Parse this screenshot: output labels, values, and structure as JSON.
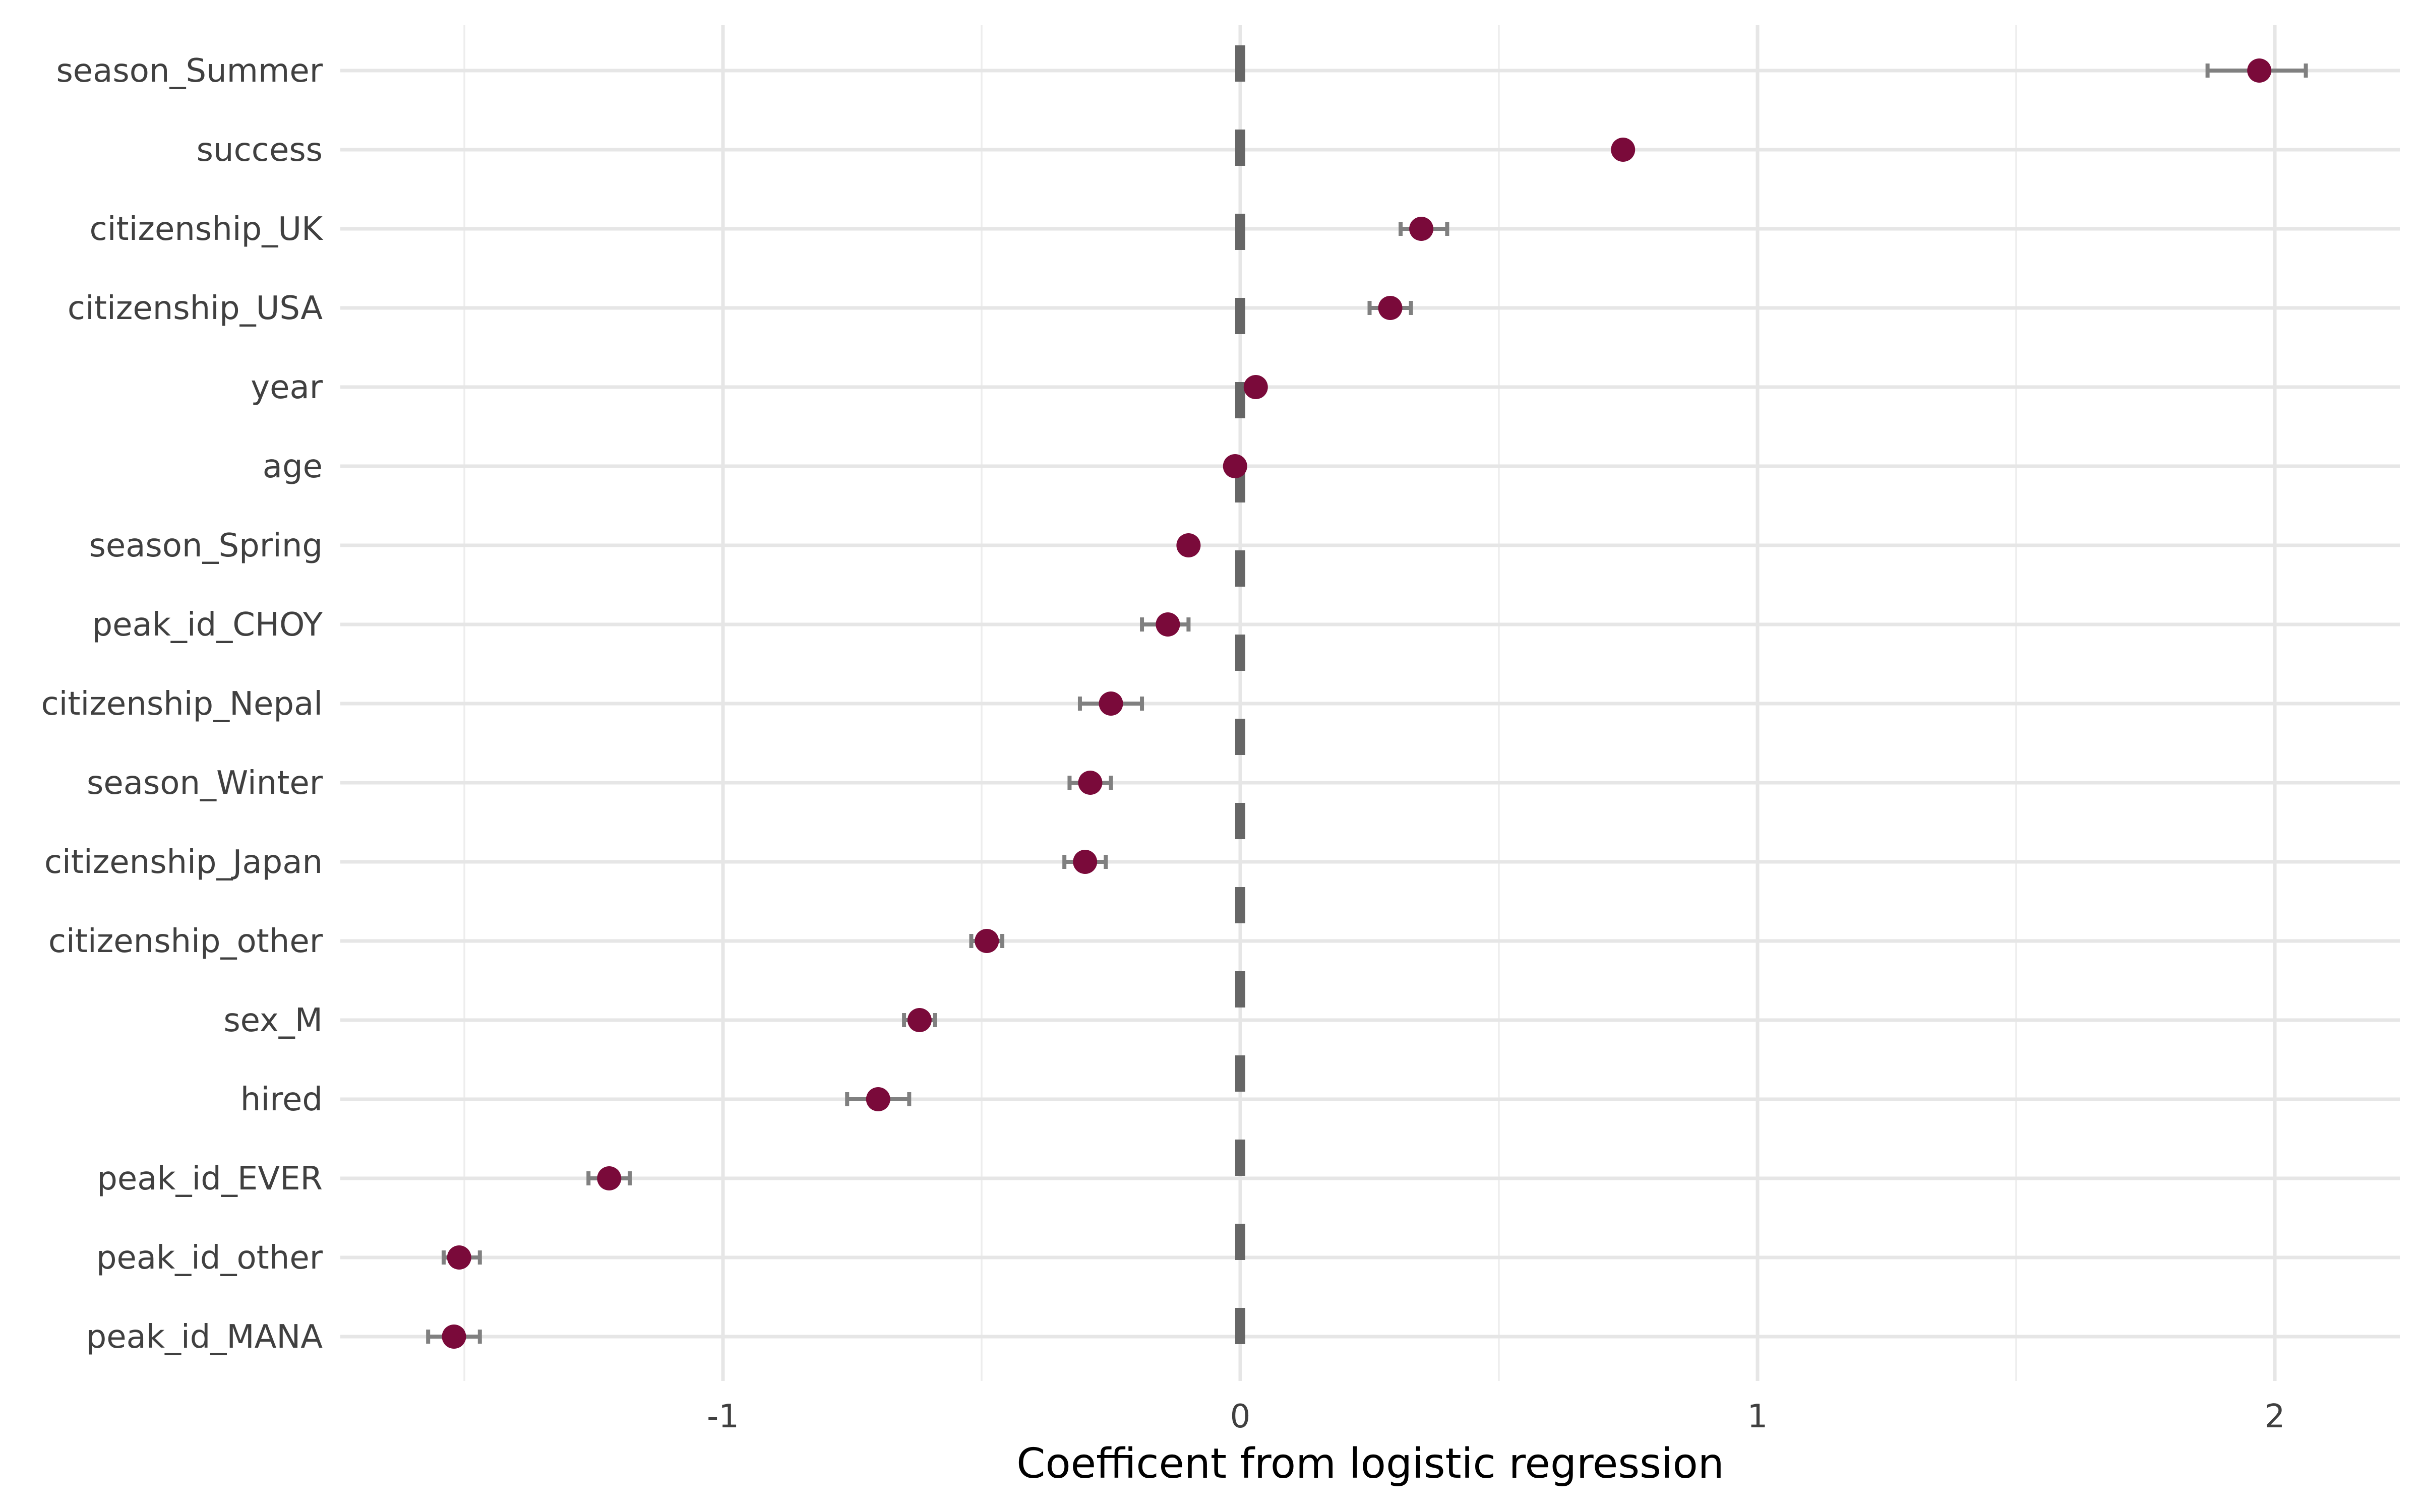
{
  "chart_data": {
    "type": "scatter",
    "title": "",
    "xlabel": "Coefficent from logistic regression",
    "ylabel": "",
    "xlim": [
      -1.75,
      2.25
    ],
    "x_ticks": [
      -1,
      0,
      1,
      2
    ],
    "x_tick_labels": [
      "-1",
      "0",
      "1",
      "2"
    ],
    "reference_line_x": 0,
    "grid": true,
    "legend": "none",
    "colors": {
      "point": "#7a0a3a",
      "error_bar": "#808080",
      "reference_line": "#666666",
      "grid": "#e6e6e6"
    },
    "categories": [
      "season_Summer",
      "success",
      "citizenship_UK",
      "citizenship_USA",
      "year",
      "age",
      "season_Spring",
      "peak_id_CHOY",
      "citizenship_Nepal",
      "season_Winter",
      "citizenship_Japan",
      "citizenship_other",
      "sex_M",
      "hired",
      "peak_id_EVER",
      "peak_id_other",
      "peak_id_MANA"
    ],
    "estimates": [
      1.97,
      0.74,
      0.35,
      0.29,
      0.03,
      -0.01,
      -0.1,
      -0.14,
      -0.25,
      -0.29,
      -0.3,
      -0.49,
      -0.62,
      -0.7,
      -1.22,
      -1.51,
      -1.52
    ],
    "lower": [
      1.87,
      0.73,
      0.31,
      0.25,
      0.02,
      -0.015,
      -0.11,
      -0.19,
      -0.31,
      -0.33,
      -0.34,
      -0.52,
      -0.65,
      -0.76,
      -1.26,
      -1.54,
      -1.57
    ],
    "upper": [
      2.06,
      0.75,
      0.4,
      0.33,
      0.04,
      -0.005,
      -0.09,
      -0.1,
      -0.19,
      -0.25,
      -0.26,
      -0.46,
      -0.59,
      -0.64,
      -1.18,
      -1.47,
      -1.47
    ]
  }
}
